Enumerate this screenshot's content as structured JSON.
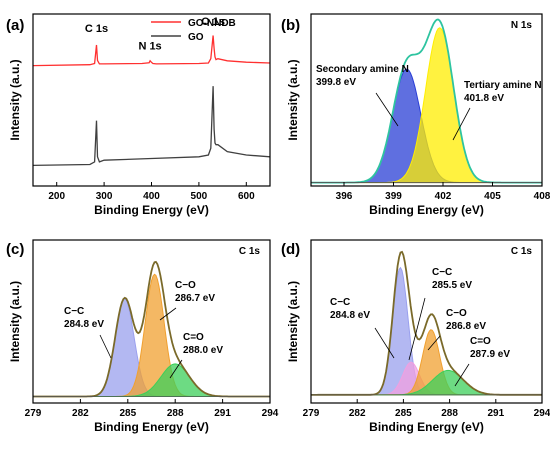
{
  "chart_data": [
    {
      "panel": "(a)",
      "type": "line",
      "xlabel": "Binding Energy (eV)",
      "ylabel": "Intensity (a.u.)",
      "xlim": [
        150,
        650
      ],
      "xticks": [
        200,
        300,
        400,
        500,
        600
      ],
      "ylim": [
        0,
        1
      ],
      "legend": "top-right",
      "series": [
        {
          "name": "GO-NNDB",
          "color": "#ff3030",
          "x": [
            150,
            270,
            280,
            284,
            286,
            290,
            300,
            380,
            395,
            397,
            399,
            401,
            403,
            410,
            500,
            520,
            525,
            530,
            532,
            534,
            536,
            540,
            560,
            600,
            650
          ],
          "y": [
            0.7,
            0.705,
            0.712,
            0.82,
            0.73,
            0.71,
            0.71,
            0.712,
            0.716,
            0.728,
            0.722,
            0.716,
            0.712,
            0.71,
            0.712,
            0.715,
            0.74,
            0.875,
            0.8,
            0.75,
            0.735,
            0.74,
            0.728,
            0.72,
            0.715
          ]
        },
        {
          "name": "GO",
          "color": "#404040",
          "x": [
            150,
            270,
            280,
            284,
            286,
            290,
            300,
            400,
            500,
            520,
            525,
            530,
            532,
            534,
            536,
            540,
            560,
            600,
            650
          ],
          "y": [
            0.12,
            0.125,
            0.14,
            0.38,
            0.17,
            0.14,
            0.15,
            0.16,
            0.17,
            0.18,
            0.22,
            0.58,
            0.33,
            0.25,
            0.24,
            0.24,
            0.2,
            0.18,
            0.17
          ]
        }
      ],
      "annotations": [
        "C 1s",
        "N 1s",
        "O 1s"
      ]
    },
    {
      "panel": "(b)",
      "type": "area",
      "title": "N 1s",
      "xlabel": "Binding Energy (eV)",
      "ylabel": "Intensity (a.u.)",
      "xlim": [
        394,
        408
      ],
      "xticks": [
        396,
        399,
        402,
        405,
        408
      ],
      "ylim": [
        0,
        1
      ],
      "baseline": 0.02,
      "envelope_color": "#2ec4a0",
      "peaks": [
        {
          "label": "Secondary amine N",
          "value_label": "399.8 eV",
          "center": 399.8,
          "height": 0.66,
          "sigma": 0.85,
          "color": "#2a3fd6"
        },
        {
          "label": "Tertiary amine N",
          "value_label": "401.8 eV",
          "center": 401.8,
          "height": 0.9,
          "sigma": 0.85,
          "color": "#ffee00"
        }
      ]
    },
    {
      "panel": "(c)",
      "type": "area",
      "title": "C 1s",
      "xlabel": "Binding Energy (eV)",
      "ylabel": "Intensity (a.u.)",
      "xlim": [
        279,
        294
      ],
      "xticks": [
        279,
        282,
        285,
        288,
        291,
        294
      ],
      "ylim": [
        0,
        1
      ],
      "baseline": 0.04,
      "envelope_color": "#7a6a2a",
      "peaks": [
        {
          "label": "C−C",
          "value_label": "284.8 eV",
          "center": 284.8,
          "height": 0.6,
          "sigma": 0.6,
          "color": "#9aa0ee"
        },
        {
          "label": "C−O",
          "value_label": "286.7 eV",
          "center": 286.7,
          "height": 0.75,
          "sigma": 0.6,
          "color": "#f0a030"
        },
        {
          "label": "C=O",
          "value_label": "288.0 eV",
          "center": 288.0,
          "height": 0.2,
          "sigma": 0.9,
          "color": "#3ccf5a"
        }
      ]
    },
    {
      "panel": "(d)",
      "type": "area",
      "title": "C 1s",
      "xlabel": "Binding Energy (eV)",
      "ylabel": "Intensity (a.u.)",
      "xlim": [
        279,
        294
      ],
      "xticks": [
        279,
        282,
        285,
        288,
        291,
        294
      ],
      "ylim": [
        0,
        1
      ],
      "baseline": 0.05,
      "envelope_color": "#7a6a2a",
      "peaks": [
        {
          "label": "C−C",
          "value_label": "284.8 eV",
          "center": 284.8,
          "height": 0.78,
          "sigma": 0.5,
          "color": "#9aa0ee"
        },
        {
          "label": "C−C",
          "value_label": "285.5 eV",
          "center": 285.5,
          "height": 0.2,
          "sigma": 0.55,
          "color": "#f0a0e0"
        },
        {
          "label": "C−O",
          "value_label": "286.8 eV",
          "center": 286.8,
          "height": 0.4,
          "sigma": 0.55,
          "color": "#f0a030"
        },
        {
          "label": "C=O",
          "value_label": "287.9 eV",
          "center": 287.9,
          "height": 0.15,
          "sigma": 1.0,
          "color": "#3ccf5a"
        }
      ]
    }
  ]
}
